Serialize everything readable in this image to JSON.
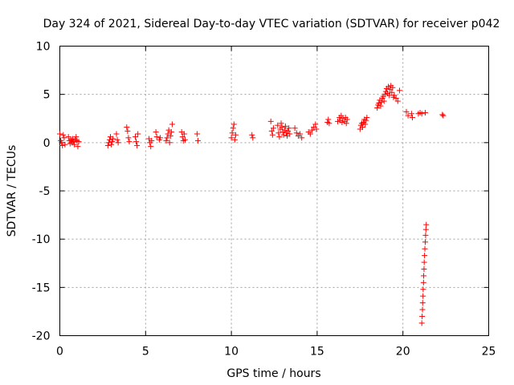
{
  "chart_data": {
    "type": "scatter",
    "title": "Day 324 of 2021, Sidereal Day-to-day VTEC variation (SDTVAR) for receiver p042",
    "xlabel": "GPS time / hours",
    "ylabel": "SDTVAR / TECUs",
    "xlim": [
      0,
      25
    ],
    "ylim": [
      -20,
      10
    ],
    "xticks": [
      0,
      5,
      10,
      15,
      20,
      25
    ],
    "yticks": [
      -20,
      -15,
      -10,
      -5,
      0,
      5,
      10
    ],
    "grid": true,
    "marker": "+",
    "color": "#ff0000",
    "series": [
      {
        "name": "SDTVAR",
        "points": [
          [
            0.0,
            0.9
          ],
          [
            0.05,
            0.2
          ],
          [
            0.1,
            0.0
          ],
          [
            0.15,
            -0.3
          ],
          [
            0.2,
            0.8
          ],
          [
            0.25,
            0.5
          ],
          [
            0.3,
            -0.2
          ],
          [
            0.5,
            0.6
          ],
          [
            0.55,
            0.2
          ],
          [
            0.6,
            -0.1
          ],
          [
            0.65,
            0.3
          ],
          [
            0.7,
            0.0
          ],
          [
            0.75,
            0.4
          ],
          [
            0.8,
            0.1
          ],
          [
            0.85,
            -0.2
          ],
          [
            0.9,
            0.3
          ],
          [
            0.95,
            0.6
          ],
          [
            1.0,
            0.2
          ],
          [
            1.05,
            -0.4
          ],
          [
            1.1,
            0.1
          ],
          [
            2.8,
            -0.3
          ],
          [
            2.85,
            0.0
          ],
          [
            2.9,
            0.3
          ],
          [
            2.95,
            0.6
          ],
          [
            3.0,
            -0.2
          ],
          [
            3.05,
            0.1
          ],
          [
            3.1,
            0.4
          ],
          [
            3.3,
            0.9
          ],
          [
            3.35,
            0.3
          ],
          [
            3.4,
            0.0
          ],
          [
            3.9,
            1.6
          ],
          [
            3.95,
            1.2
          ],
          [
            4.0,
            0.5
          ],
          [
            4.05,
            0.1
          ],
          [
            4.4,
            0.6
          ],
          [
            4.45,
            0.1
          ],
          [
            4.5,
            -0.3
          ],
          [
            4.55,
            0.9
          ],
          [
            5.2,
            0.4
          ],
          [
            5.25,
            0.0
          ],
          [
            5.3,
            -0.4
          ],
          [
            5.35,
            0.2
          ],
          [
            5.6,
            1.1
          ],
          [
            5.65,
            0.6
          ],
          [
            5.8,
            0.3
          ],
          [
            5.85,
            0.5
          ],
          [
            6.2,
            0.2
          ],
          [
            6.25,
            0.5
          ],
          [
            6.3,
            0.9
          ],
          [
            6.35,
            1.3
          ],
          [
            6.4,
            0.0
          ],
          [
            6.45,
            0.7
          ],
          [
            6.5,
            1.1
          ],
          [
            6.55,
            1.9
          ],
          [
            7.1,
            1.1
          ],
          [
            7.15,
            0.6
          ],
          [
            7.2,
            0.2
          ],
          [
            7.25,
            0.9
          ],
          [
            7.3,
            0.3
          ],
          [
            8.0,
            0.9
          ],
          [
            8.05,
            0.2
          ],
          [
            10.0,
            0.5
          ],
          [
            10.05,
            1.0
          ],
          [
            10.1,
            1.5
          ],
          [
            10.15,
            1.9
          ],
          [
            10.2,
            0.3
          ],
          [
            10.25,
            0.8
          ],
          [
            11.2,
            0.8
          ],
          [
            11.25,
            0.5
          ],
          [
            12.3,
            2.2
          ],
          [
            12.35,
            1.2
          ],
          [
            12.4,
            0.8
          ],
          [
            12.45,
            1.5
          ],
          [
            12.7,
            1.8
          ],
          [
            12.75,
            1.0
          ],
          [
            12.8,
            0.6
          ],
          [
            12.85,
            1.4
          ],
          [
            12.9,
            2.0
          ],
          [
            12.95,
            1.6
          ],
          [
            13.0,
            1.1
          ],
          [
            13.05,
            0.8
          ],
          [
            13.1,
            1.3
          ],
          [
            13.15,
            1.7
          ],
          [
            13.2,
            1.0
          ],
          [
            13.25,
            0.7
          ],
          [
            13.3,
            1.2
          ],
          [
            13.35,
            1.5
          ],
          [
            13.4,
            0.9
          ],
          [
            13.7,
            1.5
          ],
          [
            13.8,
            1.0
          ],
          [
            13.9,
            0.7
          ],
          [
            14.0,
            0.9
          ],
          [
            14.1,
            0.5
          ],
          [
            14.5,
            1.1
          ],
          [
            14.6,
            0.9
          ],
          [
            14.7,
            1.3
          ],
          [
            14.8,
            1.6
          ],
          [
            14.9,
            1.9
          ],
          [
            14.95,
            1.4
          ],
          [
            15.6,
            2.1
          ],
          [
            15.65,
            2.4
          ],
          [
            15.7,
            2.0
          ],
          [
            16.2,
            2.2
          ],
          [
            16.3,
            2.6
          ],
          [
            16.35,
            2.3
          ],
          [
            16.4,
            2.8
          ],
          [
            16.45,
            2.1
          ],
          [
            16.5,
            2.5
          ],
          [
            16.6,
            2.2
          ],
          [
            16.65,
            2.6
          ],
          [
            16.7,
            2.0
          ],
          [
            16.75,
            2.4
          ],
          [
            17.5,
            1.4
          ],
          [
            17.55,
            1.8
          ],
          [
            17.6,
            2.0
          ],
          [
            17.65,
            1.6
          ],
          [
            17.7,
            2.1
          ],
          [
            17.75,
            2.4
          ],
          [
            17.8,
            1.9
          ],
          [
            17.85,
            2.3
          ],
          [
            17.9,
            2.6
          ],
          [
            18.5,
            3.6
          ],
          [
            18.55,
            3.9
          ],
          [
            18.6,
            4.1
          ],
          [
            18.65,
            4.4
          ],
          [
            18.7,
            3.8
          ],
          [
            18.75,
            4.2
          ],
          [
            18.8,
            4.6
          ],
          [
            18.85,
            4.8
          ],
          [
            18.9,
            4.3
          ],
          [
            18.95,
            5.0
          ],
          [
            19.0,
            5.3
          ],
          [
            19.05,
            5.6
          ],
          [
            19.1,
            5.1
          ],
          [
            19.15,
            5.8
          ],
          [
            19.2,
            4.9
          ],
          [
            19.25,
            5.5
          ],
          [
            19.3,
            5.9
          ],
          [
            19.35,
            5.2
          ],
          [
            19.4,
            5.7
          ],
          [
            19.45,
            4.7
          ],
          [
            19.5,
            4.9
          ],
          [
            19.6,
            4.6
          ],
          [
            19.7,
            4.3
          ],
          [
            19.8,
            5.4
          ],
          [
            20.2,
            3.2
          ],
          [
            20.3,
            2.8
          ],
          [
            20.5,
            3.0
          ],
          [
            20.55,
            2.6
          ],
          [
            20.9,
            3.0
          ],
          [
            21.0,
            3.1
          ],
          [
            21.1,
            3.0
          ],
          [
            21.3,
            3.1
          ],
          [
            22.3,
            2.9
          ],
          [
            22.35,
            2.8
          ],
          [
            21.1,
            -18.7
          ],
          [
            21.12,
            -18.0
          ],
          [
            21.14,
            -17.3
          ],
          [
            21.15,
            -16.6
          ],
          [
            21.17,
            -15.9
          ],
          [
            21.18,
            -15.2
          ],
          [
            21.2,
            -14.5
          ],
          [
            21.21,
            -13.8
          ],
          [
            21.23,
            -13.1
          ],
          [
            21.24,
            -12.4
          ],
          [
            21.26,
            -11.7
          ],
          [
            21.28,
            -11.0
          ],
          [
            21.3,
            -10.3
          ],
          [
            21.32,
            -9.6
          ],
          [
            21.34,
            -9.0
          ],
          [
            21.36,
            -8.5
          ]
        ]
      }
    ]
  }
}
